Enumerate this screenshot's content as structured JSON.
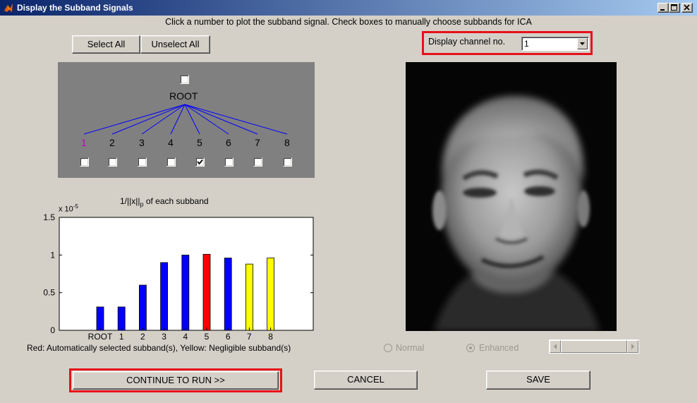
{
  "window": {
    "title": "Display the Subband Signals",
    "icon": "matlab-icon",
    "controls": [
      "minimize-icon",
      "maximize-icon",
      "close-icon"
    ]
  },
  "instructions": "Click a number to plot the subband signal. Check boxes to manually choose subbands for ICA",
  "buttons": {
    "select_all": "Select All",
    "unselect_all": "Unselect All",
    "continue": "CONTINUE TO RUN >>",
    "cancel": "CANCEL",
    "save": "SAVE"
  },
  "channel": {
    "label": "Display channel no.",
    "selected": "1"
  },
  "tree": {
    "root_label": "ROOT",
    "root_checked": false,
    "nodes": [
      {
        "label": "1",
        "checked": false,
        "color": "#c000c0"
      },
      {
        "label": "2",
        "checked": false,
        "color": "#000000"
      },
      {
        "label": "3",
        "checked": false,
        "color": "#000000"
      },
      {
        "label": "4",
        "checked": false,
        "color": "#000000"
      },
      {
        "label": "5",
        "checked": true,
        "color": "#000000"
      },
      {
        "label": "6",
        "checked": false,
        "color": "#000000"
      },
      {
        "label": "7",
        "checked": false,
        "color": "#000000"
      },
      {
        "label": "8",
        "checked": false,
        "color": "#000000"
      }
    ],
    "edge_color": "#0000ff"
  },
  "chart_data": {
    "type": "bar",
    "title": "1/||x||",
    "title_sub": "p",
    "title_rest": " of each subband",
    "multiplier": "x 10",
    "multiplier_exp": "-5",
    "categories": [
      "ROOT",
      "1",
      "2",
      "3",
      "4",
      "5",
      "6",
      "7",
      "8"
    ],
    "values": [
      0.31,
      0.31,
      0.6,
      0.9,
      1.0,
      1.01,
      0.96,
      0.88,
      0.96
    ],
    "colors": [
      "#0000ff",
      "#0000ff",
      "#0000ff",
      "#0000ff",
      "#0000ff",
      "#ff0000",
      "#0000ff",
      "#ffff00",
      "#ffff00"
    ],
    "ylim": [
      0,
      1.5
    ],
    "yticks": [
      "0",
      "0.5",
      "1",
      "1.5"
    ],
    "grid": false,
    "legend_note": "Red: Automatically selected subband(s), Yellow: Negligible subband(s)"
  },
  "display_mode": {
    "normal": "Normal",
    "enhanced": "Enhanced",
    "selected": "enhanced"
  }
}
